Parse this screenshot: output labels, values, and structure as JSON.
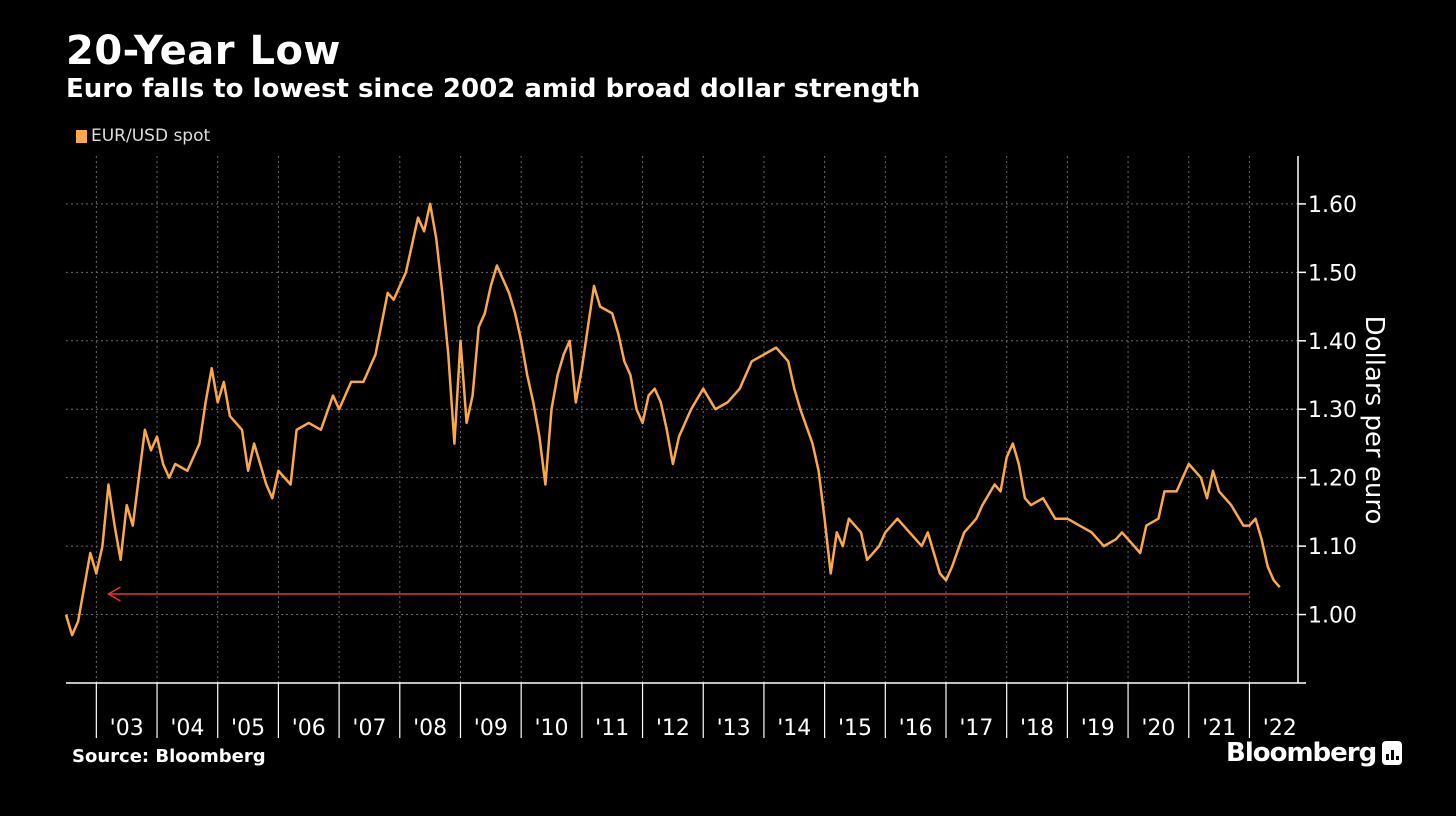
{
  "chart_data": {
    "type": "line",
    "title": "20-Year Low",
    "subtitle": "Euro falls to lowest since 2002 amid broad dollar strength",
    "legend": [
      "EUR/USD spot"
    ],
    "ylabel": "Dollars per euro",
    "ylim": [
      0.9,
      1.67
    ],
    "yticks": [
      1.0,
      1.1,
      1.2,
      1.3,
      1.4,
      1.5,
      1.6
    ],
    "ytick_labels": [
      "1.00",
      "1.10",
      "1.20",
      "1.30",
      "1.40",
      "1.50",
      "1.60"
    ],
    "xlim": [
      2002.5,
      2022.8
    ],
    "xticks": [
      2003,
      2004,
      2005,
      2006,
      2007,
      2008,
      2009,
      2010,
      2011,
      2012,
      2013,
      2014,
      2015,
      2016,
      2017,
      2018,
      2019,
      2020,
      2021,
      2022
    ],
    "xtick_labels": [
      "'03",
      "'04",
      "'05",
      "'06",
      "'07",
      "'08",
      "'09",
      "'10",
      "'11",
      "'12",
      "'13",
      "'14",
      "'15",
      "'16",
      "'17",
      "'18",
      "'19",
      "'20",
      "'21",
      "'22"
    ],
    "grid": true,
    "series": [
      {
        "name": "EUR/USD spot",
        "color": "#f9a94a",
        "x": [
          2002.5,
          2002.6,
          2002.7,
          2002.8,
          2002.9,
          2003.0,
          2003.1,
          2003.2,
          2003.3,
          2003.4,
          2003.5,
          2003.6,
          2003.7,
          2003.8,
          2003.9,
          2004.0,
          2004.1,
          2004.2,
          2004.3,
          2004.5,
          2004.7,
          2004.8,
          2004.9,
          2005.0,
          2005.1,
          2005.2,
          2005.4,
          2005.5,
          2005.6,
          2005.8,
          2005.9,
          2006.0,
          2006.2,
          2006.3,
          2006.5,
          2006.7,
          2006.9,
          2007.0,
          2007.2,
          2007.4,
          2007.6,
          2007.8,
          2007.9,
          2008.0,
          2008.1,
          2008.3,
          2008.4,
          2008.5,
          2008.6,
          2008.7,
          2008.8,
          2008.9,
          2009.0,
          2009.1,
          2009.2,
          2009.3,
          2009.4,
          2009.5,
          2009.6,
          2009.8,
          2009.9,
          2010.0,
          2010.1,
          2010.2,
          2010.3,
          2010.4,
          2010.5,
          2010.6,
          2010.7,
          2010.8,
          2010.9,
          2011.0,
          2011.1,
          2011.2,
          2011.3,
          2011.5,
          2011.6,
          2011.7,
          2011.8,
          2011.9,
          2012.0,
          2012.1,
          2012.2,
          2012.3,
          2012.4,
          2012.5,
          2012.6,
          2012.8,
          2013.0,
          2013.2,
          2013.4,
          2013.6,
          2013.8,
          2014.0,
          2014.2,
          2014.4,
          2014.5,
          2014.6,
          2014.8,
          2014.9,
          2015.0,
          2015.1,
          2015.2,
          2015.3,
          2015.4,
          2015.6,
          2015.7,
          2015.9,
          2016.0,
          2016.2,
          2016.4,
          2016.6,
          2016.7,
          2016.9,
          2017.0,
          2017.1,
          2017.3,
          2017.5,
          2017.6,
          2017.8,
          2017.9,
          2018.0,
          2018.1,
          2018.2,
          2018.3,
          2018.4,
          2018.6,
          2018.8,
          2019.0,
          2019.2,
          2019.4,
          2019.6,
          2019.8,
          2019.9,
          2020.0,
          2020.1,
          2020.2,
          2020.3,
          2020.5,
          2020.6,
          2020.8,
          2021.0,
          2021.2,
          2021.3,
          2021.4,
          2021.5,
          2021.7,
          2021.9,
          2022.0,
          2022.1,
          2022.2,
          2022.3,
          2022.4,
          2022.5
        ],
        "values": [
          1.0,
          0.97,
          0.99,
          1.04,
          1.09,
          1.06,
          1.1,
          1.19,
          1.13,
          1.08,
          1.16,
          1.13,
          1.2,
          1.27,
          1.24,
          1.26,
          1.22,
          1.2,
          1.22,
          1.21,
          1.25,
          1.31,
          1.36,
          1.31,
          1.34,
          1.29,
          1.27,
          1.21,
          1.25,
          1.19,
          1.17,
          1.21,
          1.19,
          1.27,
          1.28,
          1.27,
          1.32,
          1.3,
          1.34,
          1.34,
          1.38,
          1.47,
          1.46,
          1.48,
          1.5,
          1.58,
          1.56,
          1.6,
          1.55,
          1.47,
          1.38,
          1.25,
          1.4,
          1.28,
          1.32,
          1.42,
          1.44,
          1.48,
          1.51,
          1.47,
          1.44,
          1.4,
          1.35,
          1.31,
          1.26,
          1.19,
          1.3,
          1.35,
          1.38,
          1.4,
          1.31,
          1.36,
          1.42,
          1.48,
          1.45,
          1.44,
          1.41,
          1.37,
          1.35,
          1.3,
          1.28,
          1.32,
          1.33,
          1.31,
          1.27,
          1.22,
          1.26,
          1.3,
          1.33,
          1.3,
          1.31,
          1.33,
          1.37,
          1.38,
          1.39,
          1.37,
          1.33,
          1.3,
          1.25,
          1.21,
          1.14,
          1.06,
          1.12,
          1.1,
          1.14,
          1.12,
          1.08,
          1.1,
          1.12,
          1.14,
          1.12,
          1.1,
          1.12,
          1.06,
          1.05,
          1.07,
          1.12,
          1.14,
          1.16,
          1.19,
          1.18,
          1.23,
          1.25,
          1.22,
          1.17,
          1.16,
          1.17,
          1.14,
          1.14,
          1.13,
          1.12,
          1.1,
          1.11,
          1.12,
          1.11,
          1.1,
          1.09,
          1.13,
          1.14,
          1.18,
          1.18,
          1.22,
          1.2,
          1.17,
          1.21,
          1.18,
          1.16,
          1.13,
          1.13,
          1.14,
          1.11,
          1.07,
          1.05,
          1.04
        ]
      }
    ],
    "annotations": [
      {
        "type": "arrow",
        "color": "#e03a2f",
        "y": 1.03,
        "from_x": 2022.0,
        "to_x": 2003.2,
        "label": ""
      }
    ]
  },
  "source": "Source: Bloomberg",
  "brand": "Bloomberg"
}
